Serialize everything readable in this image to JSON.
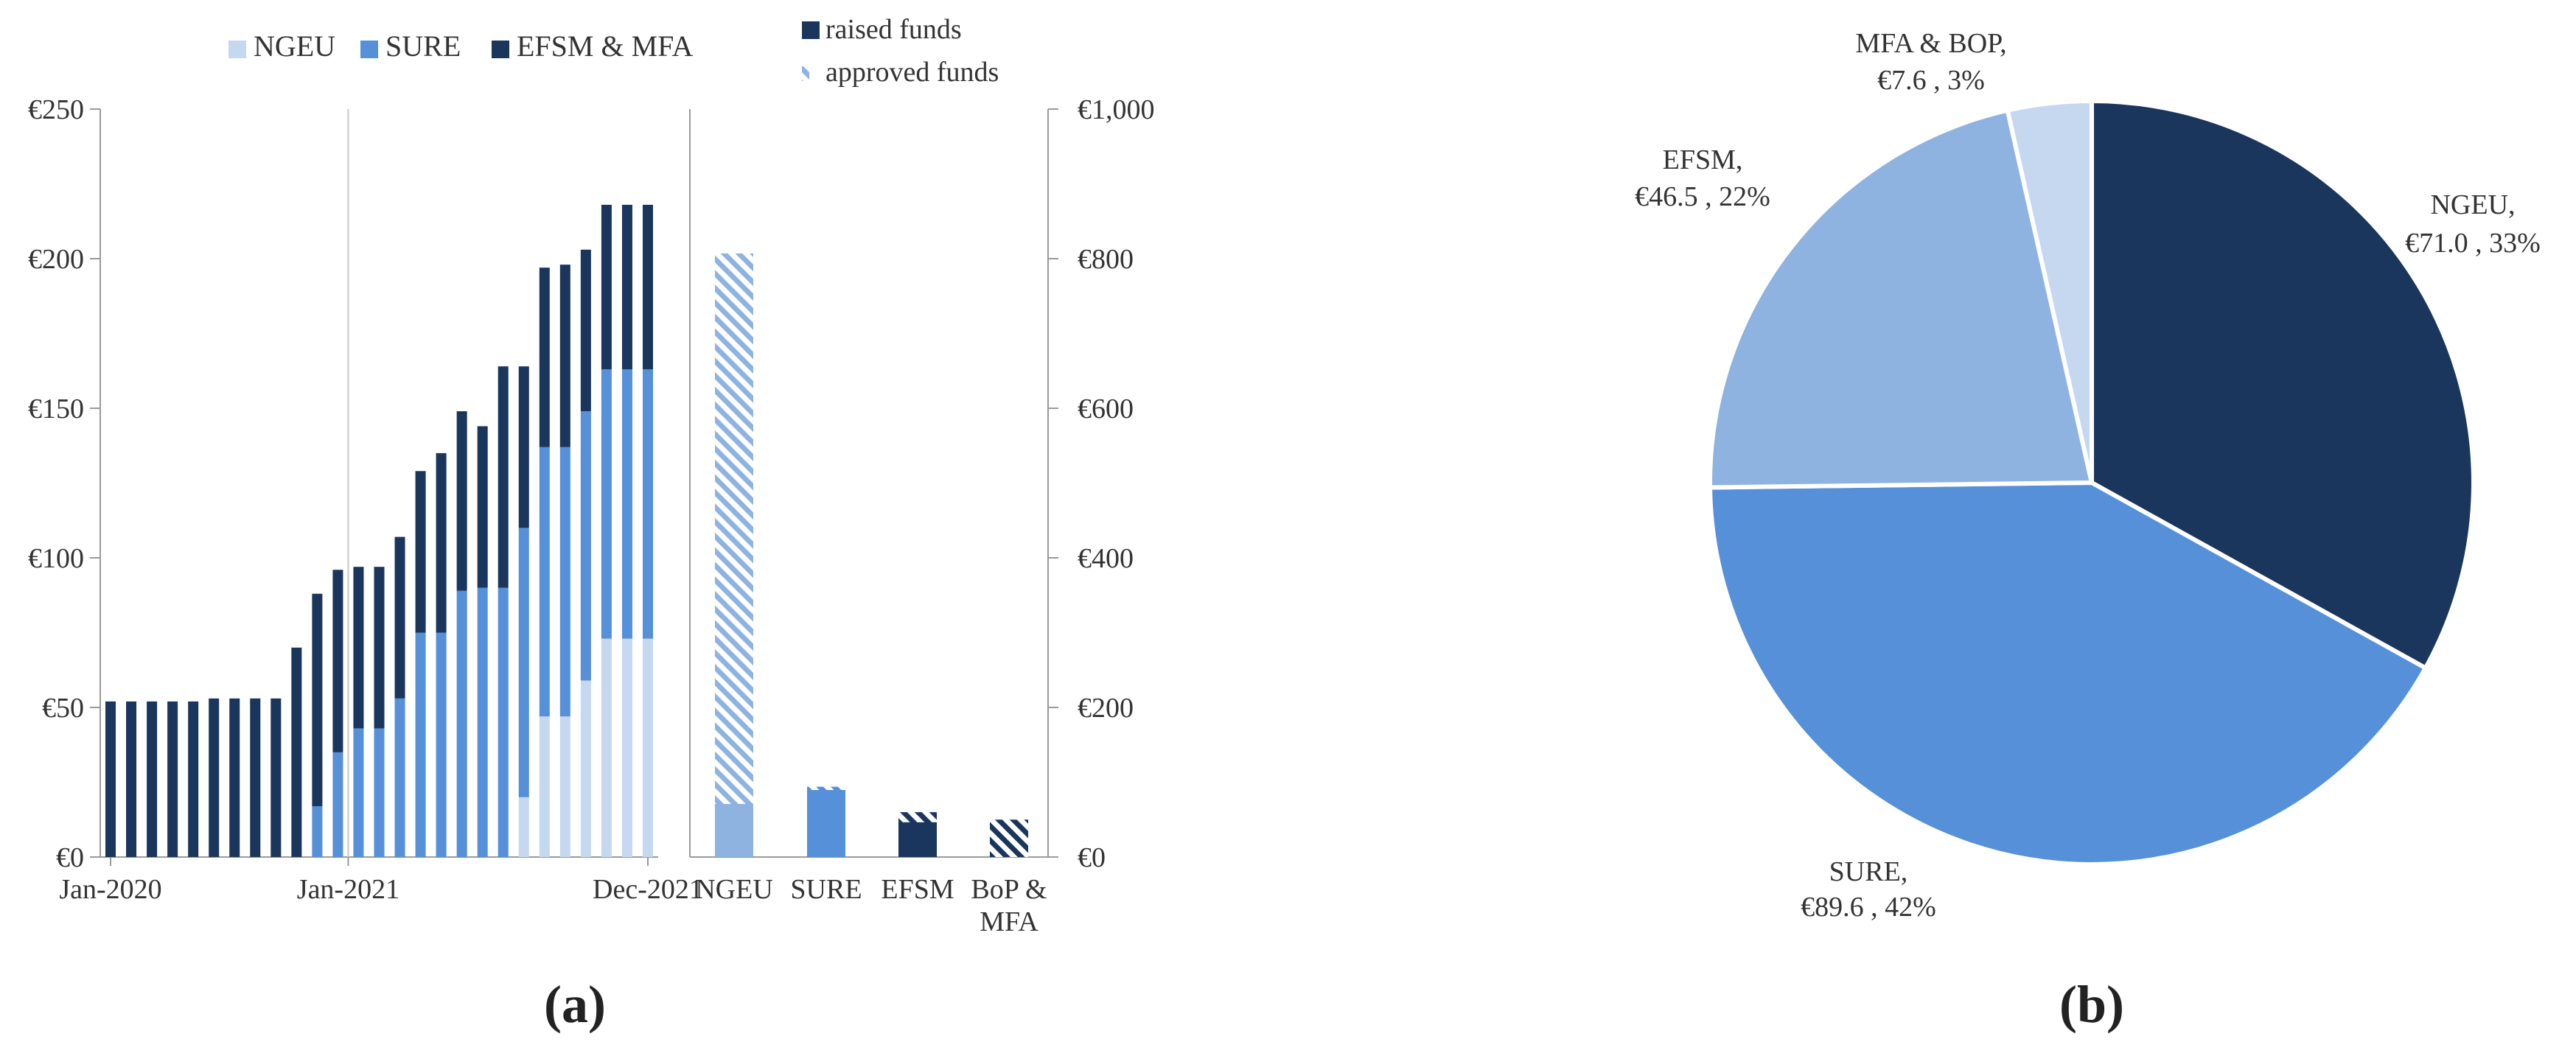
{
  "colors": {
    "ngeu": "#c5d8f0",
    "sure": "#5590d9",
    "efsm_mfa": "#1b365d",
    "ngeu_hatch": "#8fb3e1",
    "axis": "#9a9a9a",
    "pie_ngeu": "#1b365d",
    "pie_sure": "#5590d9",
    "pie_efsm": "#8fb3e1",
    "pie_mfa": "#c5d8f0"
  },
  "panel_labels": {
    "a": "(a)",
    "b": "(b)"
  },
  "chart_data": [
    {
      "type": "bar",
      "stacked": true,
      "x_labels": [
        "Jan-2020",
        "Jan-2021",
        "Dec-2021"
      ],
      "y_ticks": [
        "€0",
        "€50",
        "€100",
        "€150",
        "€200",
        "€250"
      ],
      "ylim": [
        0,
        250
      ],
      "legend": [
        "NGEU",
        "SURE",
        "EFSM & MFA"
      ],
      "legend_position": "top",
      "series": [
        {
          "name": "NGEU",
          "values": [
            0,
            0,
            0,
            0,
            0,
            0,
            0,
            0,
            0,
            0,
            0,
            0,
            0,
            0,
            0,
            0,
            0,
            0,
            0,
            0,
            20,
            47,
            47,
            59,
            73,
            73,
            73
          ]
        },
        {
          "name": "SURE",
          "values": [
            0,
            0,
            0,
            0,
            0,
            0,
            0,
            0,
            0,
            0,
            17,
            35,
            43,
            43,
            53,
            75,
            75,
            89,
            90,
            90,
            90,
            90,
            90,
            90,
            90,
            90,
            90
          ]
        },
        {
          "name": "EFSM & MFA",
          "values": [
            52,
            52,
            52,
            52,
            52,
            53,
            53,
            53,
            53,
            70,
            71,
            61,
            54,
            54,
            54,
            54,
            60,
            60,
            54,
            74,
            54,
            60,
            61,
            54,
            55,
            55,
            55
          ]
        }
      ]
    },
    {
      "type": "bar",
      "categories": [
        "NGEU",
        "SURE",
        "EFSM",
        "BoP & MFA"
      ],
      "y_ticks": [
        "€0",
        "€200",
        "€400",
        "€600",
        "€800",
        "€1,000"
      ],
      "ylim": [
        0,
        1000
      ],
      "legend": [
        "raised funds",
        "approved funds"
      ],
      "legend_position": "top",
      "series": [
        {
          "name": "raised funds",
          "values": [
            71,
            89.6,
            46.5,
            7.6
          ]
        },
        {
          "name": "approved funds",
          "values": [
            807,
            94,
            60,
            50
          ]
        }
      ]
    },
    {
      "type": "pie",
      "slices": [
        {
          "name": "NGEU",
          "value": 71.0,
          "pct": 33,
          "label_line1": "NGEU,",
          "label_line2": "€71.0 , 33%"
        },
        {
          "name": "SURE",
          "value": 89.6,
          "pct": 42,
          "label_line1": "SURE,",
          "label_line2": "€89.6 , 42%"
        },
        {
          "name": "EFSM",
          "value": 46.5,
          "pct": 22,
          "label_line1": "EFSM,",
          "label_line2": "€46.5 , 22%"
        },
        {
          "name": "MFA & BOP",
          "value": 7.6,
          "pct": 3,
          "label_line1": "MFA & BOP,",
          "label_line2": "€7.6 , 3%"
        }
      ]
    }
  ]
}
